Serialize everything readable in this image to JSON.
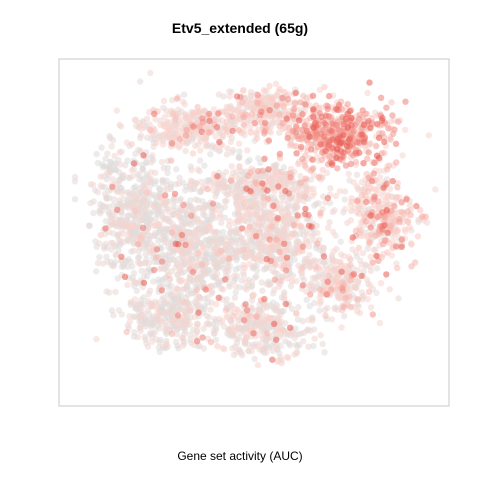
{
  "chart_data": {
    "type": "scatter",
    "title": "Etv5_extended (65g)",
    "xlabel": "Gene set activity (AUC)",
    "ylabel": "",
    "axes_shown": false,
    "grid": false,
    "legend": "none",
    "color_scale": {
      "low": "#dcdcdc",
      "mid": "#fcd3cc",
      "high": "#e8564d"
    },
    "point_count_estimate": 4000,
    "point_alpha": 0.55,
    "clusters": [
      {
        "name": "top-left band",
        "cx": 0.33,
        "cy": 0.82,
        "rx": 0.13,
        "ry": 0.07,
        "n": 320,
        "activity": 0.32
      },
      {
        "name": "top-center ridge",
        "cx": 0.52,
        "cy": 0.88,
        "rx": 0.1,
        "ry": 0.06,
        "n": 240,
        "activity": 0.35
      },
      {
        "name": "top-right hot cluster",
        "cx": 0.72,
        "cy": 0.8,
        "rx": 0.14,
        "ry": 0.09,
        "n": 520,
        "activity": 0.62
      },
      {
        "name": "left mass",
        "cx": 0.16,
        "cy": 0.57,
        "rx": 0.1,
        "ry": 0.2,
        "n": 520,
        "activity": 0.1
      },
      {
        "name": "center-left mass",
        "cx": 0.33,
        "cy": 0.45,
        "rx": 0.13,
        "ry": 0.19,
        "n": 620,
        "activity": 0.14
      },
      {
        "name": "center mass",
        "cx": 0.55,
        "cy": 0.48,
        "rx": 0.14,
        "ry": 0.16,
        "n": 620,
        "activity": 0.22
      },
      {
        "name": "right arm",
        "cx": 0.85,
        "cy": 0.55,
        "rx": 0.08,
        "ry": 0.12,
        "n": 300,
        "activity": 0.45
      },
      {
        "name": "upper-center band",
        "cx": 0.52,
        "cy": 0.65,
        "rx": 0.17,
        "ry": 0.05,
        "n": 280,
        "activity": 0.26
      },
      {
        "name": "bottom-center",
        "cx": 0.52,
        "cy": 0.2,
        "rx": 0.13,
        "ry": 0.08,
        "n": 320,
        "activity": 0.2
      },
      {
        "name": "bottom-left",
        "cx": 0.26,
        "cy": 0.23,
        "rx": 0.11,
        "ry": 0.08,
        "n": 260,
        "activity": 0.14
      },
      {
        "name": "bottom-right",
        "cx": 0.73,
        "cy": 0.34,
        "rx": 0.09,
        "ry": 0.09,
        "n": 240,
        "activity": 0.3
      }
    ]
  }
}
